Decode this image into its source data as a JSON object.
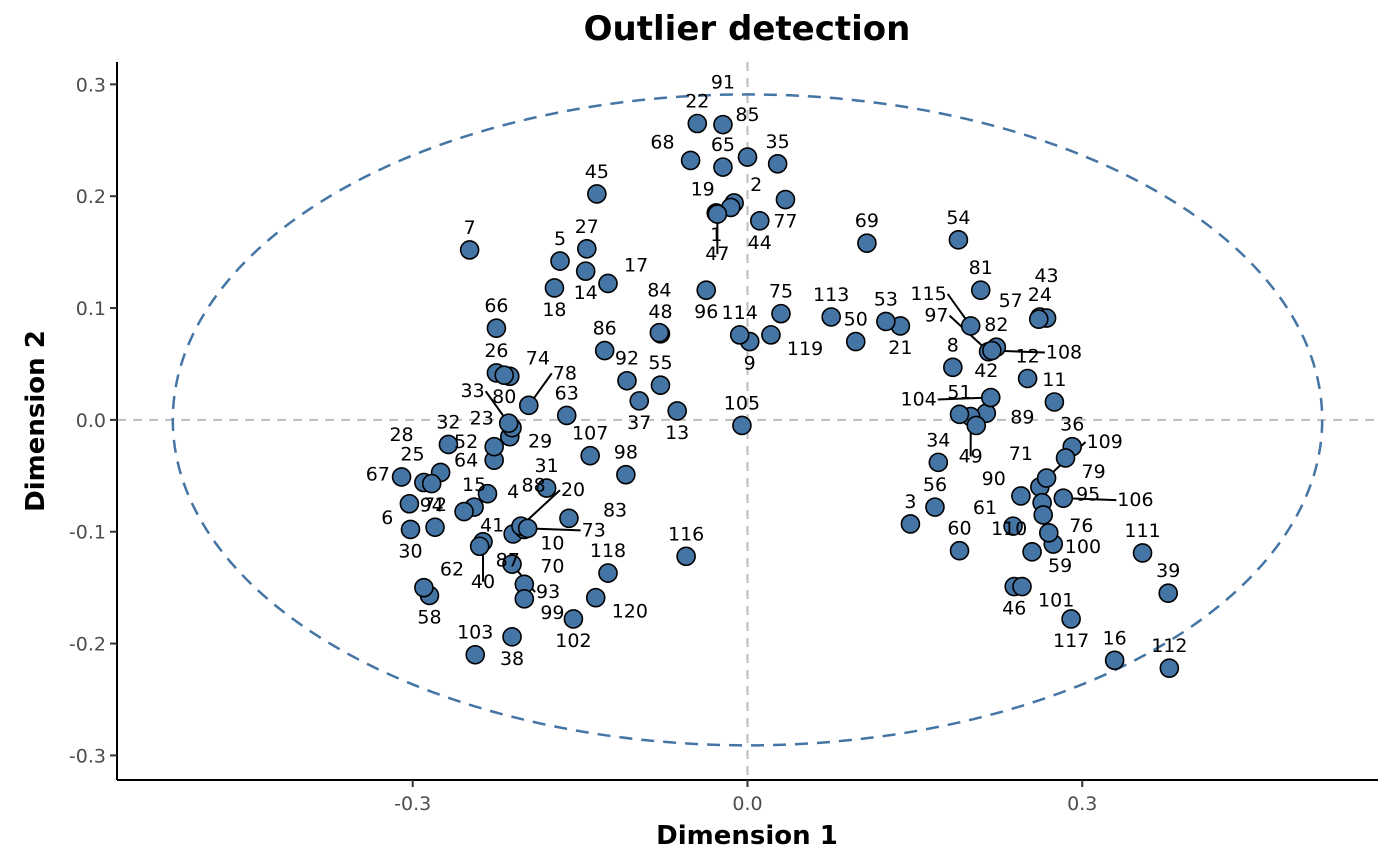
{
  "chart_data": {
    "type": "scatter",
    "title": "Outlier detection",
    "xlabel": "Dimension 1",
    "ylabel": "Dimension 2",
    "xlim": [
      -0.565,
      0.565
    ],
    "ylim": [
      -0.322,
      0.32
    ],
    "x_ticks": [
      -0.3,
      0.0,
      0.3
    ],
    "x_tick_labels": [
      "-0.3",
      "0.0",
      "0.3"
    ],
    "y_ticks": [
      -0.3,
      -0.2,
      -0.1,
      0.0,
      0.1,
      0.2,
      0.3
    ],
    "y_tick_labels": [
      "-0.3",
      "-0.2",
      "-0.1",
      "0.0",
      "0.1",
      "0.2",
      "0.3"
    ],
    "reference_lines": {
      "x": 0,
      "y": 0,
      "style": "dashed",
      "color": "#bebebe"
    },
    "ellipse": {
      "center": [
        0,
        0
      ],
      "rx": 0.515,
      "ry": 0.291,
      "style": "dashed",
      "color": "#4575a4"
    },
    "point_color": "#4575a4",
    "grid": false,
    "legend": "none",
    "points": [
      {
        "label": "1",
        "x": -0.028,
        "y": 0.185
      },
      {
        "label": "2",
        "x": -0.012,
        "y": 0.194
      },
      {
        "label": "3",
        "x": 0.146,
        "y": -0.093
      },
      {
        "label": "4",
        "x": -0.21,
        "y": -0.102
      },
      {
        "label": "5",
        "x": -0.168,
        "y": 0.142
      },
      {
        "label": "6",
        "x": -0.303,
        "y": -0.075
      },
      {
        "label": "7",
        "x": -0.249,
        "y": 0.152
      },
      {
        "label": "8",
        "x": 0.184,
        "y": 0.047
      },
      {
        "label": "9",
        "x": 0.002,
        "y": 0.07
      },
      {
        "label": "10",
        "x": -0.2,
        "y": -0.098
      },
      {
        "label": "11",
        "x": 0.275,
        "y": 0.016
      },
      {
        "label": "12",
        "x": 0.251,
        "y": 0.037
      },
      {
        "label": "13",
        "x": -0.063,
        "y": 0.008
      },
      {
        "label": "14",
        "x": -0.145,
        "y": 0.133
      },
      {
        "label": "15",
        "x": -0.245,
        "y": -0.078
      },
      {
        "label": "16",
        "x": 0.329,
        "y": -0.215
      },
      {
        "label": "17",
        "x": -0.125,
        "y": 0.122
      },
      {
        "label": "18",
        "x": -0.173,
        "y": 0.118
      },
      {
        "label": "19",
        "x": -0.015,
        "y": 0.19
      },
      {
        "label": "20",
        "x": -0.203,
        "y": -0.095
      },
      {
        "label": "21",
        "x": 0.137,
        "y": 0.084
      },
      {
        "label": "22",
        "x": -0.045,
        "y": 0.265
      },
      {
        "label": "23",
        "x": -0.213,
        "y": -0.015
      },
      {
        "label": "24",
        "x": 0.262,
        "y": 0.092
      },
      {
        "label": "25",
        "x": -0.275,
        "y": -0.047
      },
      {
        "label": "26",
        "x": -0.225,
        "y": 0.042
      },
      {
        "label": "27",
        "x": -0.144,
        "y": 0.153
      },
      {
        "label": "28",
        "x": -0.31,
        "y": -0.051
      },
      {
        "label": "29",
        "x": -0.211,
        "y": -0.007
      },
      {
        "label": "30",
        "x": -0.302,
        "y": -0.098
      },
      {
        "label": "31",
        "x": -0.18,
        "y": -0.061
      },
      {
        "label": "32",
        "x": -0.268,
        "y": -0.022
      },
      {
        "label": "33",
        "x": -0.214,
        "y": -0.003
      },
      {
        "label": "34",
        "x": 0.171,
        "y": -0.038
      },
      {
        "label": "35",
        "x": 0.027,
        "y": 0.229
      },
      {
        "label": "36",
        "x": 0.291,
        "y": -0.024
      },
      {
        "label": "37",
        "x": -0.097,
        "y": 0.017
      },
      {
        "label": "38",
        "x": -0.211,
        "y": -0.194
      },
      {
        "label": "39",
        "x": 0.377,
        "y": -0.155
      },
      {
        "label": "40",
        "x": -0.237,
        "y": -0.109
      },
      {
        "label": "41",
        "x": -0.254,
        "y": -0.082
      },
      {
        "label": "42",
        "x": 0.214,
        "y": 0.006
      },
      {
        "label": "43",
        "x": 0.268,
        "y": 0.091
      },
      {
        "label": "44",
        "x": 0.011,
        "y": 0.178
      },
      {
        "label": "45",
        "x": -0.135,
        "y": 0.202
      },
      {
        "label": "46",
        "x": 0.239,
        "y": -0.149
      },
      {
        "label": "47",
        "x": -0.027,
        "y": 0.184
      },
      {
        "label": "48",
        "x": -0.078,
        "y": 0.077
      },
      {
        "label": "49",
        "x": 0.2,
        "y": 0.003
      },
      {
        "label": "50",
        "x": 0.097,
        "y": 0.07
      },
      {
        "label": "51",
        "x": 0.19,
        "y": 0.005
      },
      {
        "label": "52",
        "x": -0.227,
        "y": -0.036
      },
      {
        "label": "53",
        "x": 0.124,
        "y": 0.088
      },
      {
        "label": "54",
        "x": 0.189,
        "y": 0.161
      },
      {
        "label": "55",
        "x": -0.078,
        "y": 0.031
      },
      {
        "label": "56",
        "x": 0.168,
        "y": -0.078
      },
      {
        "label": "57",
        "x": 0.261,
        "y": 0.09
      },
      {
        "label": "58",
        "x": -0.285,
        "y": -0.157
      },
      {
        "label": "59",
        "x": 0.255,
        "y": -0.118
      },
      {
        "label": "60",
        "x": 0.19,
        "y": -0.117
      },
      {
        "label": "61",
        "x": 0.238,
        "y": -0.095
      },
      {
        "label": "62",
        "x": -0.29,
        "y": -0.15
      },
      {
        "label": "63",
        "x": -0.162,
        "y": 0.004
      },
      {
        "label": "64",
        "x": -0.227,
        "y": -0.024
      },
      {
        "label": "65",
        "x": -0.022,
        "y": 0.226
      },
      {
        "label": "66",
        "x": -0.225,
        "y": 0.082
      },
      {
        "label": "67",
        "x": -0.29,
        "y": -0.056
      },
      {
        "label": "68",
        "x": -0.051,
        "y": 0.232
      },
      {
        "label": "69",
        "x": 0.107,
        "y": 0.158
      },
      {
        "label": "70",
        "x": -0.2,
        "y": -0.147
      },
      {
        "label": "71",
        "x": 0.245,
        "y": -0.068
      },
      {
        "label": "72",
        "x": -0.28,
        "y": -0.096
      },
      {
        "label": "73",
        "x": -0.197,
        "y": -0.097
      },
      {
        "label": "74",
        "x": -0.213,
        "y": 0.039
      },
      {
        "label": "75",
        "x": 0.03,
        "y": 0.095
      },
      {
        "label": "76",
        "x": 0.274,
        "y": -0.111
      },
      {
        "label": "77",
        "x": 0.034,
        "y": 0.197
      },
      {
        "label": "78",
        "x": -0.196,
        "y": 0.013
      },
      {
        "label": "79",
        "x": 0.285,
        "y": -0.034
      },
      {
        "label": "80",
        "x": -0.218,
        "y": 0.04
      },
      {
        "label": "81",
        "x": 0.209,
        "y": 0.116
      },
      {
        "label": "82",
        "x": 0.223,
        "y": 0.065
      },
      {
        "label": "83",
        "x": -0.16,
        "y": -0.088
      },
      {
        "label": "84",
        "x": -0.079,
        "y": 0.078
      },
      {
        "label": "85",
        "x": 0.0,
        "y": 0.235
      },
      {
        "label": "86",
        "x": -0.128,
        "y": 0.062
      },
      {
        "label": "87",
        "x": -0.24,
        "y": -0.113
      },
      {
        "label": "88",
        "x": -0.233,
        "y": -0.066
      },
      {
        "label": "89",
        "x": 0.205,
        "y": -0.005
      },
      {
        "label": "90",
        "x": 0.262,
        "y": -0.06
      },
      {
        "label": "91",
        "x": -0.022,
        "y": 0.264
      },
      {
        "label": "92",
        "x": -0.108,
        "y": 0.035
      },
      {
        "label": "93",
        "x": -0.211,
        "y": -0.129
      },
      {
        "label": "94",
        "x": -0.283,
        "y": -0.057
      },
      {
        "label": "95",
        "x": 0.264,
        "y": -0.074
      },
      {
        "label": "96",
        "x": -0.037,
        "y": 0.116
      },
      {
        "label": "97",
        "x": 0.216,
        "y": 0.061
      },
      {
        "label": "98",
        "x": -0.109,
        "y": -0.049
      },
      {
        "label": "99",
        "x": -0.2,
        "y": -0.16
      },
      {
        "label": "100",
        "x": 0.27,
        "y": -0.101
      },
      {
        "label": "101",
        "x": 0.246,
        "y": -0.149
      },
      {
        "label": "102",
        "x": -0.156,
        "y": -0.178
      },
      {
        "label": "103",
        "x": -0.244,
        "y": -0.21
      },
      {
        "label": "104",
        "x": 0.218,
        "y": 0.02
      },
      {
        "label": "105",
        "x": -0.005,
        "y": -0.005
      },
      {
        "label": "106",
        "x": 0.283,
        "y": -0.07
      },
      {
        "label": "107",
        "x": -0.141,
        "y": -0.032
      },
      {
        "label": "108",
        "x": 0.219,
        "y": 0.062
      },
      {
        "label": "109",
        "x": 0.268,
        "y": -0.052
      },
      {
        "label": "110",
        "x": 0.265,
        "y": -0.085
      },
      {
        "label": "111",
        "x": 0.354,
        "y": -0.119
      },
      {
        "label": "112",
        "x": 0.378,
        "y": -0.222
      },
      {
        "label": "113",
        "x": 0.075,
        "y": 0.092
      },
      {
        "label": "114",
        "x": -0.007,
        "y": 0.076
      },
      {
        "label": "115",
        "x": 0.2,
        "y": 0.084
      },
      {
        "label": "116",
        "x": -0.055,
        "y": -0.122
      },
      {
        "label": "117",
        "x": 0.29,
        "y": -0.178
      },
      {
        "label": "118",
        "x": -0.125,
        "y": -0.137
      },
      {
        "label": "119",
        "x": 0.021,
        "y": 0.076
      },
      {
        "label": "120",
        "x": -0.136,
        "y": -0.159
      }
    ]
  }
}
